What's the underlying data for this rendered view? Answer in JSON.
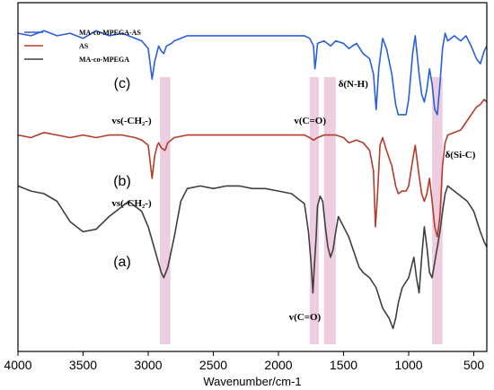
{
  "chart_data": {
    "type": "line",
    "xlabel": "Wavenumber/cm-1",
    "ylabel": "",
    "xlim": [
      4000,
      400
    ],
    "x_reversed": true,
    "x_ticks": [
      4000,
      3500,
      3000,
      2500,
      2000,
      1500,
      1000,
      500
    ],
    "y_axis_ticks": false,
    "grid": false,
    "legend_position": "top-left",
    "legend": [
      {
        "label": "MA-co-MPEGA-AS",
        "color": "#2b5fd9"
      },
      {
        "label": "AS",
        "color": "#b53b2c"
      },
      {
        "label": "MA-co-MPEGA",
        "color": "#3f3f3f"
      }
    ],
    "highlight_bands": [
      {
        "from": 2910,
        "to": 2830
      },
      {
        "from": 1760,
        "to": 1690
      },
      {
        "from": 1650,
        "to": 1560
      },
      {
        "from": 820,
        "to": 740
      }
    ],
    "curve_labels": [
      {
        "text": "(c)",
        "x": 3200,
        "series": 0
      },
      {
        "text": "(b)",
        "x": 3200,
        "series": 1
      },
      {
        "text": "(a)",
        "x": 3200,
        "series": 2
      }
    ],
    "annotations": [
      {
        "text": "vs(-CH₂-)",
        "x": 3280,
        "near": "c"
      },
      {
        "text": "v(C=O)",
        "x": 1880,
        "near": "c"
      },
      {
        "text": "δ(N-H)",
        "x": 1540,
        "near": "c"
      },
      {
        "text": "δ(Si-C)",
        "x": 720,
        "near": "c"
      },
      {
        "text": "vs(-CH₂-)",
        "x": 3280,
        "near": "b"
      },
      {
        "text": "v(C=O)",
        "x": 1920,
        "near": "a"
      }
    ],
    "series": [
      {
        "name": "MA-co-MPEGA-AS",
        "color": "#2b5fd9",
        "points": [
          [
            4000,
            0.9
          ],
          [
            3900,
            0.89
          ],
          [
            3800,
            0.91
          ],
          [
            3700,
            0.89
          ],
          [
            3600,
            0.9
          ],
          [
            3500,
            0.88
          ],
          [
            3400,
            0.91
          ],
          [
            3300,
            0.89
          ],
          [
            3200,
            0.9
          ],
          [
            3100,
            0.88
          ],
          [
            3050,
            0.87
          ],
          [
            3000,
            0.84
          ],
          [
            2970,
            0.72
          ],
          [
            2950,
            0.79
          ],
          [
            2930,
            0.83
          ],
          [
            2920,
            0.85
          ],
          [
            2900,
            0.83
          ],
          [
            2880,
            0.82
          ],
          [
            2860,
            0.85
          ],
          [
            2820,
            0.86
          ],
          [
            2800,
            0.87
          ],
          [
            2700,
            0.89
          ],
          [
            2500,
            0.89
          ],
          [
            2200,
            0.89
          ],
          [
            2000,
            0.89
          ],
          [
            1900,
            0.89
          ],
          [
            1800,
            0.89
          ],
          [
            1760,
            0.88
          ],
          [
            1730,
            0.85
          ],
          [
            1720,
            0.76
          ],
          [
            1710,
            0.8
          ],
          [
            1700,
            0.86
          ],
          [
            1650,
            0.87
          ],
          [
            1600,
            0.85
          ],
          [
            1560,
            0.87
          ],
          [
            1500,
            0.86
          ],
          [
            1460,
            0.84
          ],
          [
            1400,
            0.86
          ],
          [
            1350,
            0.82
          ],
          [
            1300,
            0.8
          ],
          [
            1270,
            0.74
          ],
          [
            1250,
            0.6
          ],
          [
            1230,
            0.76
          ],
          [
            1200,
            0.88
          ],
          [
            1170,
            0.84
          ],
          [
            1130,
            0.74
          ],
          [
            1100,
            0.62
          ],
          [
            1080,
            0.58
          ],
          [
            1050,
            0.58
          ],
          [
            1020,
            0.58
          ],
          [
            1000,
            0.64
          ],
          [
            970,
            0.82
          ],
          [
            950,
            0.89
          ],
          [
            920,
            0.74
          ],
          [
            900,
            0.66
          ],
          [
            880,
            0.63
          ],
          [
            860,
            0.68
          ],
          [
            840,
            0.76
          ],
          [
            820,
            0.7
          ],
          [
            800,
            0.6
          ],
          [
            780,
            0.58
          ],
          [
            760,
            0.7
          ],
          [
            740,
            0.84
          ],
          [
            720,
            0.9
          ],
          [
            700,
            0.87
          ],
          [
            650,
            0.89
          ],
          [
            600,
            0.87
          ],
          [
            560,
            0.89
          ],
          [
            520,
            0.85
          ],
          [
            480,
            0.8
          ],
          [
            450,
            0.78
          ],
          [
            420,
            0.83
          ],
          [
            400,
            0.85
          ]
        ]
      },
      {
        "name": "AS",
        "color": "#b53b2c",
        "points": [
          [
            4000,
            0.5
          ],
          [
            3900,
            0.49
          ],
          [
            3800,
            0.51
          ],
          [
            3700,
            0.5
          ],
          [
            3600,
            0.49
          ],
          [
            3500,
            0.5
          ],
          [
            3400,
            0.49
          ],
          [
            3300,
            0.5
          ],
          [
            3200,
            0.5
          ],
          [
            3100,
            0.49
          ],
          [
            3050,
            0.48
          ],
          [
            3000,
            0.46
          ],
          [
            2970,
            0.33
          ],
          [
            2950,
            0.42
          ],
          [
            2930,
            0.46
          ],
          [
            2920,
            0.47
          ],
          [
            2900,
            0.45
          ],
          [
            2870,
            0.44
          ],
          [
            2850,
            0.47
          ],
          [
            2800,
            0.49
          ],
          [
            2700,
            0.5
          ],
          [
            2500,
            0.5
          ],
          [
            2200,
            0.5
          ],
          [
            2000,
            0.5
          ],
          [
            1900,
            0.5
          ],
          [
            1800,
            0.5
          ],
          [
            1760,
            0.49
          ],
          [
            1730,
            0.48
          ],
          [
            1700,
            0.49
          ],
          [
            1650,
            0.5
          ],
          [
            1600,
            0.5
          ],
          [
            1560,
            0.5
          ],
          [
            1500,
            0.49
          ],
          [
            1460,
            0.47
          ],
          [
            1400,
            0.48
          ],
          [
            1350,
            0.47
          ],
          [
            1300,
            0.44
          ],
          [
            1270,
            0.36
          ],
          [
            1255,
            0.14
          ],
          [
            1240,
            0.26
          ],
          [
            1220,
            0.46
          ],
          [
            1200,
            0.49
          ],
          [
            1170,
            0.44
          ],
          [
            1130,
            0.38
          ],
          [
            1100,
            0.3
          ],
          [
            1080,
            0.27
          ],
          [
            1050,
            0.28
          ],
          [
            1020,
            0.28
          ],
          [
            1000,
            0.3
          ],
          [
            970,
            0.4
          ],
          [
            950,
            0.46
          ],
          [
            920,
            0.34
          ],
          [
            900,
            0.27
          ],
          [
            880,
            0.24
          ],
          [
            860,
            0.27
          ],
          [
            840,
            0.33
          ],
          [
            820,
            0.24
          ],
          [
            800,
            0.14
          ],
          [
            780,
            0.1
          ],
          [
            760,
            0.18
          ],
          [
            740,
            0.38
          ],
          [
            720,
            0.47
          ],
          [
            700,
            0.5
          ],
          [
            650,
            0.51
          ],
          [
            600,
            0.52
          ],
          [
            560,
            0.55
          ],
          [
            520,
            0.58
          ],
          [
            480,
            0.61
          ],
          [
            450,
            0.62
          ],
          [
            420,
            0.64
          ],
          [
            400,
            0.63
          ]
        ]
      },
      {
        "name": "MA-co-MPEGA",
        "color": "#3f3f3f",
        "points": [
          [
            4000,
            0.3
          ],
          [
            3900,
            0.28
          ],
          [
            3800,
            0.27
          ],
          [
            3700,
            0.24
          ],
          [
            3600,
            0.16
          ],
          [
            3500,
            0.12
          ],
          [
            3400,
            0.13
          ],
          [
            3300,
            0.18
          ],
          [
            3200,
            0.22
          ],
          [
            3150,
            0.24
          ],
          [
            3100,
            0.22
          ],
          [
            3050,
            0.2
          ],
          [
            3000,
            0.14
          ],
          [
            2950,
            0.05
          ],
          [
            2900,
            -0.04
          ],
          [
            2880,
            -0.06
          ],
          [
            2850,
            -0.02
          ],
          [
            2800,
            0.1
          ],
          [
            2750,
            0.24
          ],
          [
            2700,
            0.29
          ],
          [
            2600,
            0.3
          ],
          [
            2500,
            0.29
          ],
          [
            2400,
            0.3
          ],
          [
            2300,
            0.3
          ],
          [
            2200,
            0.29
          ],
          [
            2100,
            0.29
          ],
          [
            2000,
            0.28
          ],
          [
            1900,
            0.27
          ],
          [
            1800,
            0.23
          ],
          [
            1770,
            0.12
          ],
          [
            1750,
            0.0
          ],
          [
            1735,
            -0.12
          ],
          [
            1725,
            -0.02
          ],
          [
            1710,
            0.1
          ],
          [
            1700,
            0.22
          ],
          [
            1680,
            0.26
          ],
          [
            1660,
            0.24
          ],
          [
            1640,
            0.14
          ],
          [
            1620,
            0.06
          ],
          [
            1600,
            0.02
          ],
          [
            1580,
            0.05
          ],
          [
            1560,
            0.12
          ],
          [
            1540,
            0.18
          ],
          [
            1500,
            0.14
          ],
          [
            1460,
            0.1
          ],
          [
            1420,
            0.04
          ],
          [
            1380,
            -0.02
          ],
          [
            1350,
            -0.04
          ],
          [
            1300,
            -0.06
          ],
          [
            1250,
            -0.1
          ],
          [
            1200,
            -0.18
          ],
          [
            1150,
            -0.22
          ],
          [
            1120,
            -0.26
          ],
          [
            1100,
            -0.22
          ],
          [
            1080,
            -0.16
          ],
          [
            1050,
            -0.1
          ],
          [
            1000,
            -0.06
          ],
          [
            960,
            0.02
          ],
          [
            940,
            -0.06
          ],
          [
            920,
            -0.12
          ],
          [
            900,
            0.02
          ],
          [
            880,
            0.14
          ],
          [
            860,
            0.06
          ],
          [
            840,
            -0.04
          ],
          [
            820,
            -0.06
          ],
          [
            800,
            0.0
          ],
          [
            780,
            0.06
          ],
          [
            760,
            0.12
          ],
          [
            740,
            0.2
          ],
          [
            720,
            0.27
          ],
          [
            700,
            0.3
          ],
          [
            650,
            0.28
          ],
          [
            600,
            0.26
          ],
          [
            550,
            0.24
          ],
          [
            500,
            0.2
          ],
          [
            450,
            0.12
          ],
          [
            420,
            0.08
          ],
          [
            400,
            0.06
          ]
        ]
      }
    ]
  }
}
